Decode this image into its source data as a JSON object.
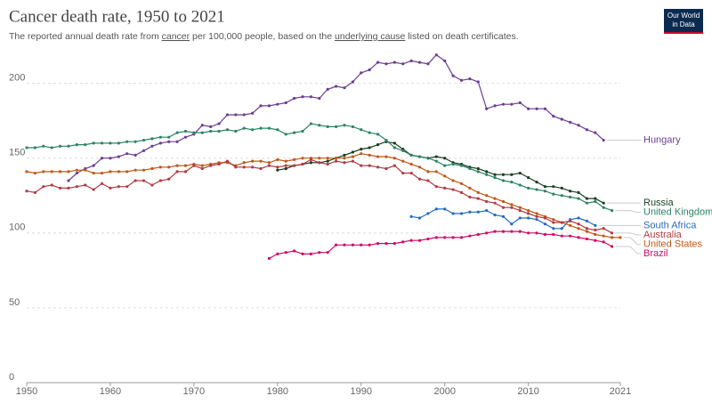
{
  "chart_data": {
    "type": "line",
    "title": "Cancer death rate, 1950 to 2021",
    "subtitle_parts": [
      "The reported annual death rate from ",
      "cancer",
      " per 100,000 people, based on the ",
      "underlying cause",
      " listed on death certificates."
    ],
    "logo": [
      "Our World",
      "in Data"
    ],
    "x": [
      1950,
      1951,
      1952,
      1953,
      1954,
      1955,
      1956,
      1957,
      1958,
      1959,
      1960,
      1961,
      1962,
      1963,
      1964,
      1965,
      1966,
      1967,
      1968,
      1969,
      1970,
      1971,
      1972,
      1973,
      1974,
      1975,
      1976,
      1977,
      1978,
      1979,
      1980,
      1981,
      1982,
      1983,
      1984,
      1985,
      1986,
      1987,
      1988,
      1989,
      1990,
      1991,
      1992,
      1993,
      1994,
      1995,
      1996,
      1997,
      1998,
      1999,
      2000,
      2001,
      2002,
      2003,
      2004,
      2005,
      2006,
      2007,
      2008,
      2009,
      2010,
      2011,
      2012,
      2013,
      2014,
      2015,
      2016,
      2017,
      2018,
      2019,
      2020,
      2021
    ],
    "xlim": [
      1950,
      2021
    ],
    "xticks": [
      1950,
      1960,
      1970,
      1980,
      1990,
      2000,
      2010,
      2021
    ],
    "ylim": [
      0,
      220
    ],
    "yticks": [
      0,
      50,
      100,
      150,
      200
    ],
    "grid": true,
    "series": [
      {
        "name": "Hungary",
        "color": "#6d3e91",
        "values": [
          null,
          null,
          null,
          null,
          null,
          135,
          140,
          143,
          145,
          150,
          150,
          151,
          153,
          152,
          155,
          158,
          160,
          161,
          161,
          164,
          166,
          172,
          171,
          173,
          179,
          179,
          179,
          180,
          185,
          185,
          186,
          187,
          190,
          191,
          191,
          190,
          196,
          198,
          197,
          201,
          207,
          209,
          214,
          213,
          214,
          213,
          215,
          214,
          213,
          219,
          215,
          205,
          202,
          203,
          201,
          183,
          185,
          186,
          186,
          187,
          183,
          183,
          183,
          178,
          176,
          174,
          172,
          169,
          167,
          162,
          null,
          null
        ]
      },
      {
        "name": "Russia",
        "color": "#1a3e1f",
        "values": [
          null,
          null,
          null,
          null,
          null,
          null,
          null,
          null,
          null,
          null,
          null,
          null,
          null,
          null,
          null,
          null,
          null,
          null,
          null,
          null,
          null,
          null,
          null,
          null,
          null,
          null,
          null,
          null,
          null,
          null,
          142,
          143,
          145,
          146,
          147,
          147,
          148,
          150,
          152,
          154,
          156,
          157,
          159,
          161,
          160,
          156,
          152,
          151,
          150,
          151,
          150,
          147,
          146,
          144,
          143,
          141,
          139,
          139,
          139,
          140,
          137,
          134,
          131,
          131,
          130,
          128,
          127,
          123,
          123,
          120,
          null,
          null
        ]
      },
      {
        "name": "United Kingdom",
        "color": "#2c8465",
        "values": [
          157,
          157,
          158,
          157,
          158,
          158,
          159,
          159,
          160,
          160,
          160,
          160,
          161,
          161,
          162,
          163,
          164,
          164,
          167,
          168,
          167,
          167,
          168,
          168,
          169,
          168,
          170,
          169,
          170,
          170,
          169,
          166,
          167,
          168,
          173,
          172,
          171,
          171,
          172,
          171,
          169,
          167,
          166,
          162,
          157,
          155,
          152,
          151,
          150,
          148,
          145,
          146,
          145,
          143,
          141,
          139,
          137,
          135,
          134,
          132,
          130,
          129,
          128,
          126,
          125,
          124,
          123,
          120,
          121,
          117,
          115,
          null
        ]
      },
      {
        "name": "South Africa",
        "color": "#286bbb",
        "values": [
          null,
          null,
          null,
          null,
          null,
          null,
          null,
          null,
          null,
          null,
          null,
          null,
          null,
          null,
          null,
          null,
          null,
          null,
          null,
          null,
          null,
          null,
          null,
          null,
          null,
          null,
          null,
          null,
          null,
          null,
          null,
          null,
          null,
          null,
          null,
          null,
          null,
          null,
          null,
          null,
          null,
          null,
          null,
          null,
          null,
          null,
          111,
          110,
          113,
          116,
          116,
          113,
          113,
          114,
          114,
          115,
          112,
          111,
          106,
          110,
          110,
          109,
          106,
          103,
          103,
          109,
          110,
          108,
          105,
          null,
          null,
          null
        ]
      },
      {
        "name": "United States",
        "color": "#c05917",
        "values": [
          141,
          140,
          141,
          141,
          141,
          141,
          142,
          142,
          140,
          140,
          141,
          141,
          141,
          142,
          142,
          143,
          144,
          144,
          145,
          145,
          146,
          145,
          146,
          147,
          147,
          145,
          147,
          148,
          148,
          147,
          149,
          148,
          149,
          150,
          150,
          150,
          150,
          150,
          150,
          151,
          153,
          152,
          151,
          151,
          150,
          148,
          146,
          144,
          141,
          141,
          138,
          135,
          133,
          130,
          127,
          125,
          123,
          121,
          119,
          117,
          115,
          113,
          111,
          109,
          107,
          105,
          103,
          101,
          99,
          98,
          97,
          97
        ]
      },
      {
        "name": "Australia",
        "color": "#b13c44",
        "values": [
          128,
          127,
          131,
          132,
          130,
          130,
          131,
          132,
          129,
          133,
          130,
          131,
          131,
          135,
          135,
          132,
          135,
          136,
          141,
          141,
          145,
          143,
          145,
          146,
          148,
          144,
          144,
          144,
          143,
          145,
          144,
          145,
          145,
          146,
          149,
          147,
          146,
          148,
          147,
          148,
          145,
          145,
          144,
          143,
          145,
          140,
          140,
          136,
          135,
          131,
          130,
          129,
          127,
          124,
          123,
          121,
          120,
          117,
          117,
          115,
          113,
          111,
          110,
          107,
          107,
          108,
          106,
          103,
          102,
          103,
          100,
          null
        ]
      },
      {
        "name": "Brazil",
        "color": "#cf0a66",
        "values": [
          null,
          null,
          null,
          null,
          null,
          null,
          null,
          null,
          null,
          null,
          null,
          null,
          null,
          null,
          null,
          null,
          null,
          null,
          null,
          null,
          null,
          null,
          null,
          null,
          null,
          null,
          null,
          null,
          null,
          83,
          86,
          87,
          88,
          86,
          86,
          87,
          87,
          92,
          92,
          92,
          92,
          92,
          93,
          93,
          93,
          94,
          95,
          95,
          96,
          97,
          97,
          97,
          97,
          98,
          99,
          100,
          101,
          101,
          101,
          101,
          100,
          100,
          99,
          99,
          98,
          98,
          97,
          96,
          95,
          94,
          91,
          null
        ]
      }
    ]
  }
}
